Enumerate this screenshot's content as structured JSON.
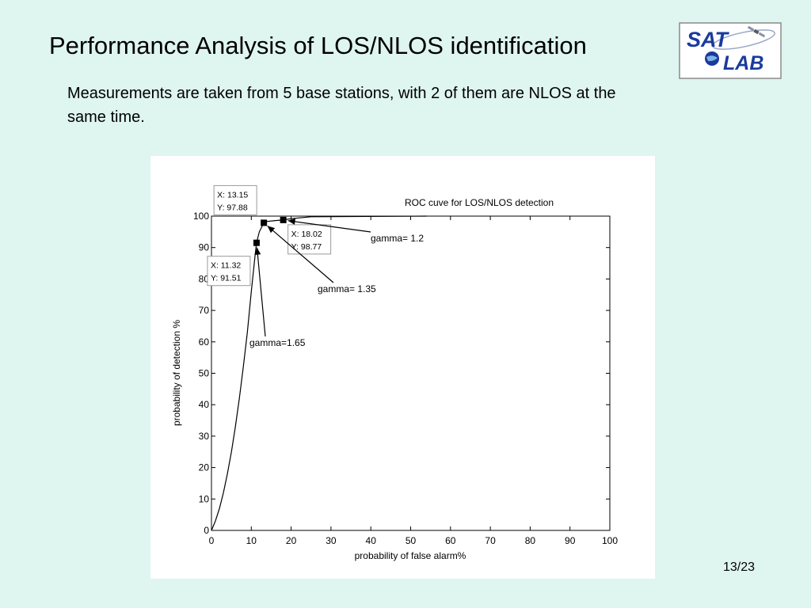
{
  "slide": {
    "title": "Performance Analysis of LOS/NLOS identification",
    "subtitle": "Measurements are taken from 5 base stations, with 2 of them are NLOS at the same time.",
    "page_number": "13/23",
    "logo": {
      "line1": "SAT",
      "line2": "LAB"
    }
  },
  "colors": {
    "background": "#dff5ef",
    "logo_blue": "#1a3a9c"
  },
  "chart_data": {
    "type": "line",
    "title": "ROC cuve for LOS/NLOS detection",
    "xlabel": "probability of false alarm%",
    "ylabel": "probability of detection %",
    "xlim": [
      0,
      100
    ],
    "ylim": [
      0,
      100
    ],
    "xticks": [
      "0",
      "10",
      "20",
      "30",
      "40",
      "50",
      "60",
      "70",
      "80",
      "90",
      "100"
    ],
    "yticks": [
      "0",
      "10",
      "20",
      "30",
      "40",
      "50",
      "60",
      "70",
      "80",
      "90",
      "100"
    ],
    "grid": false,
    "series": [
      {
        "x": [
          0,
          1,
          2,
          3,
          4,
          5,
          6,
          7,
          8,
          9,
          10,
          11,
          11.32,
          12,
          13.15,
          14,
          16,
          18.02,
          20,
          25,
          54
        ],
        "y": [
          0,
          3,
          7,
          12,
          18,
          25,
          33,
          42,
          52,
          63,
          76,
          88,
          91.51,
          95,
          97.88,
          98.3,
          98.6,
          98.77,
          99.2,
          99.8,
          100
        ]
      }
    ],
    "markers": [
      {
        "x": 11.32,
        "y": 91.51
      },
      {
        "x": 13.15,
        "y": 97.88
      },
      {
        "x": 18.02,
        "y": 98.77
      }
    ],
    "datatips": [
      {
        "x_label": "X: 11.32",
        "y_label": "Y: 91.51"
      },
      {
        "x_label": "X: 13.15",
        "y_label": "Y: 97.88"
      },
      {
        "x_label": "X: 18.02",
        "y_label": "Y: 98.77"
      }
    ],
    "annotations": [
      {
        "text": "gamma= 1.2",
        "target_x": 18.02,
        "target_y": 98.77
      },
      {
        "text": "gamma= 1.35",
        "target_x": 13.15,
        "target_y": 97.88
      },
      {
        "text": "gamma=1.65",
        "target_x": 11.32,
        "target_y": 91.51
      }
    ]
  }
}
